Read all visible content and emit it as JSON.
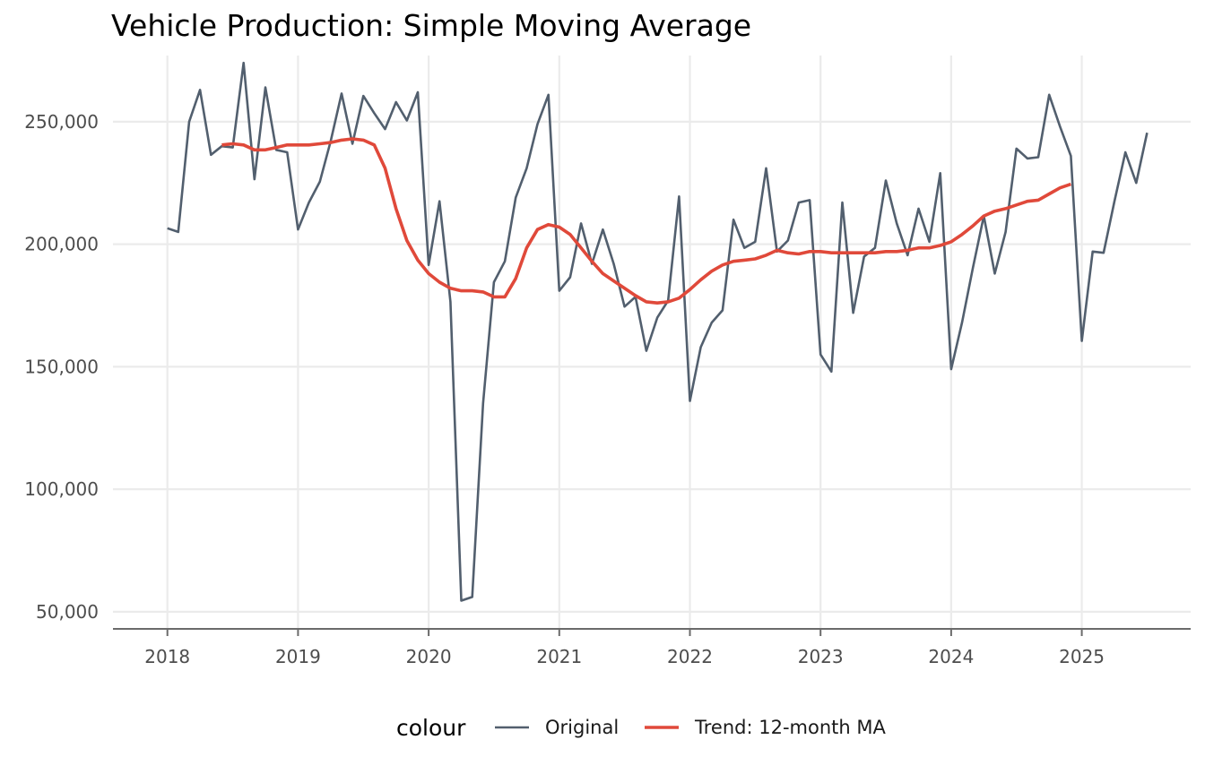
{
  "chart_data": {
    "type": "line",
    "title": "Vehicle Production: Simple Moving Average",
    "xlabel": "",
    "ylabel": "",
    "x_ticks": [
      "2018",
      "2019",
      "2020",
      "2021",
      "2022",
      "2023",
      "2024",
      "2025"
    ],
    "y_ticks": [
      {
        "value": 50000,
        "label": "50,000"
      },
      {
        "value": 100000,
        "label": "100,000"
      },
      {
        "value": 150000,
        "label": "150,000"
      },
      {
        "value": 200000,
        "label": "200,000"
      },
      {
        "value": 250000,
        "label": "250,000"
      }
    ],
    "xlim": [
      "2017-08",
      "2025-11"
    ],
    "ylim": [
      43000,
      277000
    ],
    "grid": true,
    "legend": {
      "title": "colour",
      "placement": "bottom"
    },
    "series": [
      {
        "name": "Original",
        "color": "#525f6e",
        "start": "2018-01",
        "values": [
          206500,
          205000,
          250000,
          263000,
          236500,
          240000,
          239500,
          274000,
          226500,
          264000,
          238500,
          237500,
          206000,
          217000,
          225500,
          242000,
          261500,
          241000,
          260500,
          253500,
          247000,
          258000,
          250500,
          262000,
          191500,
          217500,
          176500,
          54500,
          56000,
          135000,
          184500,
          193000,
          219000,
          231000,
          249000,
          261000,
          181000,
          186500,
          208500,
          192000,
          206000,
          192000,
          174500,
          178500,
          156500,
          170000,
          177000,
          219500,
          136000,
          158000,
          168000,
          173000,
          210000,
          198500,
          201000,
          231000,
          197000,
          201500,
          217000,
          218000,
          155000,
          148000,
          217000,
          172000,
          195000,
          198500,
          226000,
          208500,
          195500,
          214500,
          201000,
          229000,
          149000,
          168000,
          190500,
          211500,
          188000,
          205000,
          239000,
          235000,
          235500,
          261000,
          248000,
          236000,
          160500,
          197000,
          196500,
          217500,
          237500,
          225000,
          245500
        ]
      },
      {
        "name": "Trend: 12-month MA",
        "color": "#e0493a",
        "start": "2018-06",
        "values": [
          240500,
          241000,
          240500,
          238500,
          238500,
          239500,
          240500,
          240500,
          240500,
          241000,
          241500,
          242500,
          243000,
          242500,
          240500,
          231000,
          214500,
          201500,
          193500,
          188000,
          184500,
          182000,
          181000,
          181000,
          180500,
          178500,
          178500,
          186000,
          198500,
          206000,
          208000,
          207000,
          204000,
          198500,
          193000,
          188000,
          185000,
          182000,
          179000,
          176500,
          176000,
          176500,
          178000,
          181500,
          185500,
          189000,
          191500,
          193000,
          193500,
          194000,
          195500,
          197500,
          196500,
          196000,
          197000,
          197000,
          196500,
          196500,
          196500,
          196500,
          196500,
          197000,
          197000,
          197500,
          198500,
          198500,
          199500,
          201000,
          204000,
          207500,
          211500,
          213500,
          214500,
          216000,
          217500,
          218000,
          220500,
          223000,
          224500
        ]
      }
    ]
  }
}
